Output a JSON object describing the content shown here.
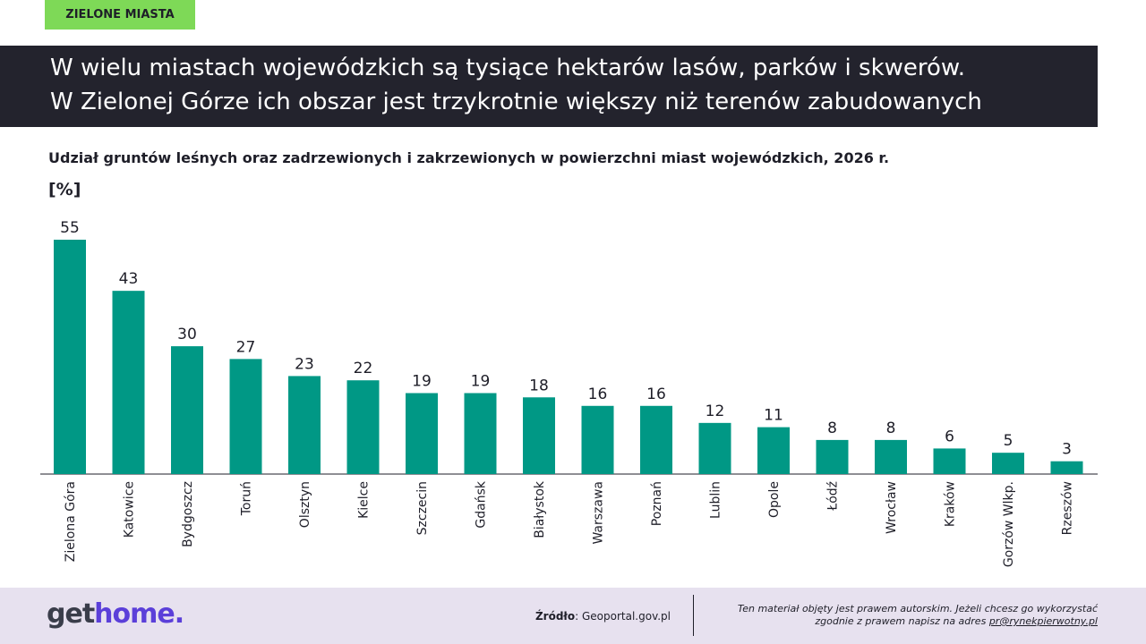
{
  "badge": "ZIELONE MIASTA",
  "headline": {
    "line1": "W wielu miastach wojewódzkich są tysiące hektarów lasów, parków i skwerów.",
    "line2": "W Zielonej Górze ich obszar jest trzykrotnie większy niż terenów zabudowanych"
  },
  "colors": {
    "bar": "#009885",
    "badge": "#7ed957",
    "banner": "#23232d",
    "footer": "#e7e1ef",
    "logo_accent": "#5b3fd9"
  },
  "chart_data": {
    "type": "bar",
    "title": "Udział gruntów leśnych oraz zadrzewionych i zakrzewionych w powierzchni miast wojewódzkich, 2026 r.",
    "ylabel": "[%]",
    "xlabel": "",
    "categories": [
      "Zielona Góra",
      "Katowice",
      "Bydgoszcz",
      "Toruń",
      "Olsztyn",
      "Kielce",
      "Szczecin",
      "Gdańsk",
      "Białystok",
      "Warszawa",
      "Poznań",
      "Lublin",
      "Opole",
      "Łódź",
      "Wrocław",
      "Kraków",
      "Gorzów Wlkp.",
      "Rzeszów"
    ],
    "values": [
      55,
      43,
      30,
      27,
      23,
      22,
      19,
      19,
      18,
      16,
      16,
      12,
      11,
      8,
      8,
      6,
      5,
      3
    ],
    "ylim": [
      0,
      55
    ],
    "grid": false,
    "legend": "none",
    "data_labels": true
  },
  "footer": {
    "logo_part1": "get",
    "logo_part2": "home.",
    "source_label": "Źródło",
    "source_value": ": Geoportal.gov.pl",
    "copyright_line1": "Ten materiał objęty jest prawem autorskim. Jeżeli chcesz go wykorzystać",
    "copyright_line2": "zgodnie z prawem napisz na adres ",
    "copyright_email": "pr@rynekpierwotny.pl"
  }
}
